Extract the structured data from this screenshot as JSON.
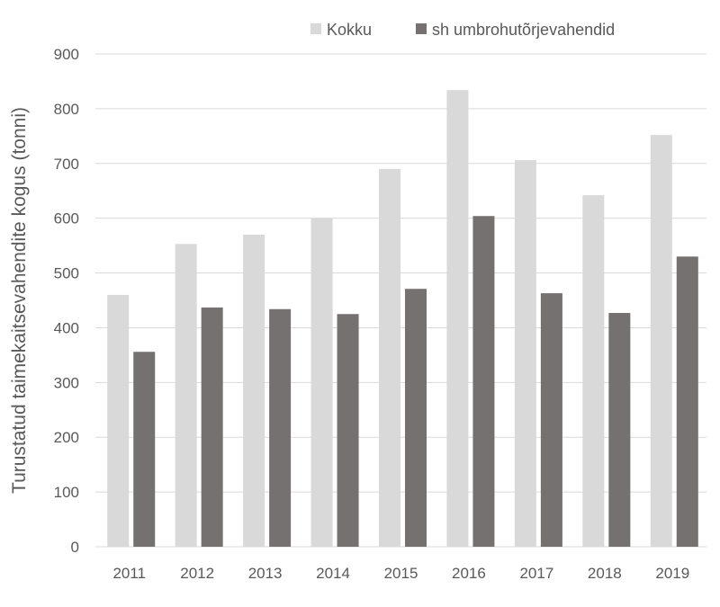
{
  "chart_data": {
    "type": "bar",
    "title": "",
    "xlabel": "",
    "ylabel": "Turustatud taimekaitsevahendite kogus (tonni)",
    "ylim": [
      0,
      900
    ],
    "yticks": [
      0,
      100,
      200,
      300,
      400,
      500,
      600,
      700,
      800,
      900
    ],
    "grid": true,
    "legend_position": "top-right",
    "categories": [
      "2011",
      "2012",
      "2013",
      "2014",
      "2015",
      "2016",
      "2017",
      "2018",
      "2019"
    ],
    "series": [
      {
        "name": "Kokku",
        "color": "#d9d9d9",
        "values": [
          460,
          553,
          570,
          600,
          690,
          834,
          706,
          642,
          752
        ]
      },
      {
        "name": "sh umbrohutõrjevahendid",
        "color": "#767171",
        "values": [
          356,
          437,
          434,
          425,
          471,
          604,
          463,
          427,
          530
        ]
      }
    ]
  }
}
